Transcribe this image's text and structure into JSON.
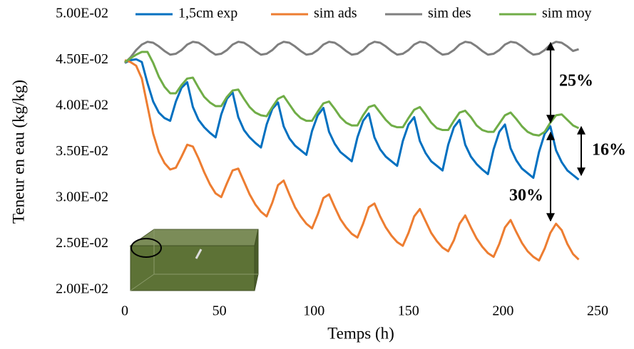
{
  "chart_data": {
    "type": "line",
    "x_label": "Temps (h)",
    "y_label": "Teneur en eau (kg/kg)",
    "legend": "top",
    "xlim": [
      0,
      250
    ],
    "xticks": [
      0,
      50,
      100,
      150,
      200,
      250
    ],
    "ylim": [
      0.02,
      0.05
    ],
    "yticks": [
      {
        "value": 0.02,
        "label": "2.00E-02"
      },
      {
        "value": 0.025,
        "label": "2.50E-02"
      },
      {
        "value": 0.03,
        "label": "3.00E-02"
      },
      {
        "value": 0.035,
        "label": "3.50E-02"
      },
      {
        "value": 0.04,
        "label": "4.00E-02"
      },
      {
        "value": 0.045,
        "label": "4.50E-02"
      },
      {
        "value": 0.05,
        "label": "5.00E-02"
      }
    ],
    "annotations": [
      "25%",
      "16%",
      "30%"
    ],
    "x": [
      0,
      3,
      6,
      9,
      12,
      15,
      18,
      21,
      24,
      27,
      30,
      33,
      36,
      39,
      42,
      45,
      48,
      51,
      54,
      57,
      60,
      63,
      66,
      69,
      72,
      75,
      78,
      81,
      84,
      87,
      90,
      93,
      96,
      99,
      102,
      105,
      108,
      111,
      114,
      117,
      120,
      123,
      126,
      129,
      132,
      135,
      138,
      141,
      144,
      147,
      150,
      153,
      156,
      159,
      162,
      165,
      168,
      171,
      174,
      177,
      180,
      183,
      186,
      189,
      192,
      195,
      198,
      201,
      204,
      207,
      210,
      213,
      216,
      219,
      222,
      225,
      228,
      231,
      234,
      237,
      240
    ],
    "series": [
      {
        "name": "1,5cm exp",
        "color": "#0070c0",
        "values": [
          0.0447,
          0.045,
          0.0451,
          0.0448,
          0.0425,
          0.0405,
          0.0393,
          0.0387,
          0.0384,
          0.0405,
          0.042,
          0.0426,
          0.0399,
          0.0385,
          0.0377,
          0.0371,
          0.0366,
          0.0391,
          0.0408,
          0.0415,
          0.0388,
          0.0374,
          0.0366,
          0.036,
          0.0355,
          0.038,
          0.0397,
          0.0404,
          0.0378,
          0.0365,
          0.0357,
          0.0352,
          0.0347,
          0.0373,
          0.039,
          0.0398,
          0.0372,
          0.0359,
          0.035,
          0.0345,
          0.034,
          0.0366,
          0.0384,
          0.0392,
          0.0366,
          0.0353,
          0.0345,
          0.034,
          0.0335,
          0.0362,
          0.038,
          0.0388,
          0.0362,
          0.0349,
          0.034,
          0.0335,
          0.033,
          0.0358,
          0.0377,
          0.0385,
          0.0358,
          0.0345,
          0.0337,
          0.0331,
          0.0326,
          0.0353,
          0.0372,
          0.038,
          0.0354,
          0.0341,
          0.0332,
          0.0327,
          0.0322,
          0.035,
          0.037,
          0.0378,
          0.0352,
          0.0339,
          0.033,
          0.0325,
          0.032
        ]
      },
      {
        "name": "sim ads",
        "color": "#ed7d31",
        "values": [
          0.045,
          0.0448,
          0.0444,
          0.043,
          0.04,
          0.037,
          0.035,
          0.0338,
          0.0331,
          0.0333,
          0.0345,
          0.0358,
          0.0356,
          0.0343,
          0.0328,
          0.0315,
          0.0305,
          0.0301,
          0.0316,
          0.033,
          0.0332,
          0.0318,
          0.0304,
          0.0293,
          0.0285,
          0.028,
          0.0295,
          0.0314,
          0.0319,
          0.0304,
          0.029,
          0.028,
          0.0272,
          0.0267,
          0.0282,
          0.03,
          0.0304,
          0.029,
          0.0277,
          0.0268,
          0.0261,
          0.0257,
          0.0272,
          0.029,
          0.0294,
          0.028,
          0.0268,
          0.0259,
          0.0252,
          0.0248,
          0.0262,
          0.028,
          0.0288,
          0.0275,
          0.0262,
          0.0253,
          0.0246,
          0.0242,
          0.0254,
          0.0272,
          0.0281,
          0.0268,
          0.0256,
          0.0247,
          0.024,
          0.0236,
          0.025,
          0.0268,
          0.0276,
          0.0263,
          0.0251,
          0.0242,
          0.0236,
          0.0232,
          0.0245,
          0.0262,
          0.0272,
          0.0265,
          0.025,
          0.0239,
          0.0233
        ]
      },
      {
        "name": "sim des",
        "color": "#7f7f7f",
        "values": [
          0.0447,
          0.0453,
          0.0461,
          0.0467,
          0.047,
          0.0469,
          0.0465,
          0.046,
          0.0456,
          0.0457,
          0.0461,
          0.0467,
          0.047,
          0.0469,
          0.0465,
          0.046,
          0.0456,
          0.0457,
          0.0461,
          0.0467,
          0.047,
          0.0469,
          0.0465,
          0.046,
          0.0456,
          0.0457,
          0.0461,
          0.0467,
          0.047,
          0.0469,
          0.0465,
          0.046,
          0.0456,
          0.0457,
          0.0461,
          0.0467,
          0.047,
          0.0469,
          0.0465,
          0.046,
          0.0456,
          0.0457,
          0.0461,
          0.0467,
          0.047,
          0.0469,
          0.0465,
          0.046,
          0.0456,
          0.0457,
          0.0461,
          0.0467,
          0.047,
          0.0469,
          0.0465,
          0.046,
          0.0456,
          0.0457,
          0.0461,
          0.0467,
          0.047,
          0.0469,
          0.0465,
          0.046,
          0.0456,
          0.0457,
          0.0461,
          0.0467,
          0.047,
          0.0469,
          0.0465,
          0.046,
          0.0456,
          0.0457,
          0.0461,
          0.0467,
          0.047,
          0.0469,
          0.0465,
          0.046,
          0.0462
        ]
      },
      {
        "name": "sim moy",
        "color": "#70ad47",
        "values": [
          0.0448,
          0.0452,
          0.0456,
          0.0459,
          0.0459,
          0.0447,
          0.0432,
          0.0421,
          0.0414,
          0.0414,
          0.0423,
          0.043,
          0.0431,
          0.042,
          0.041,
          0.0404,
          0.04,
          0.04,
          0.041,
          0.0417,
          0.0418,
          0.0408,
          0.0399,
          0.0393,
          0.039,
          0.0389,
          0.0399,
          0.0408,
          0.0411,
          0.0402,
          0.0393,
          0.0387,
          0.0384,
          0.0384,
          0.0394,
          0.0403,
          0.0405,
          0.0397,
          0.0388,
          0.0382,
          0.0379,
          0.0379,
          0.039,
          0.0399,
          0.0401,
          0.0393,
          0.0385,
          0.0379,
          0.0377,
          0.0377,
          0.0387,
          0.0396,
          0.0399,
          0.0391,
          0.0382,
          0.0376,
          0.0374,
          0.0374,
          0.0384,
          0.0393,
          0.0395,
          0.0388,
          0.0379,
          0.0374,
          0.0372,
          0.0372,
          0.0381,
          0.039,
          0.0393,
          0.0386,
          0.0378,
          0.0372,
          0.0369,
          0.0368,
          0.0372,
          0.0382,
          0.039,
          0.0391,
          0.0385,
          0.0379,
          0.0376
        ]
      }
    ]
  }
}
